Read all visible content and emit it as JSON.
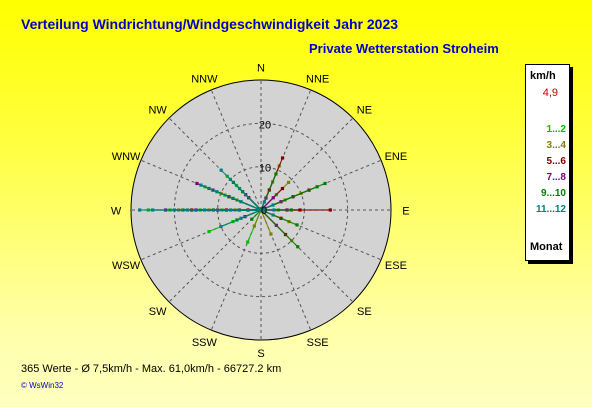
{
  "header": {
    "title": "Verteilung Windrichtung/Windgeschwindigkeit  Jahr 2023",
    "subtitle": "Private Wetterstation Stroheim"
  },
  "footer": {
    "stats": "365 Werte    -    Ø 7,5km/h   -  Max. 61,0km/h   -   66727.2 km",
    "credit": "© WsWin32"
  },
  "legend": {
    "unit": "km/h",
    "average": "4,9",
    "months": [
      {
        "label": "1...2",
        "color": "#00c000"
      },
      {
        "label": "3...4",
        "color": "#808000"
      },
      {
        "label": "5...6",
        "color": "#800000"
      },
      {
        "label": "7...8",
        "color": "#800080"
      },
      {
        "label": "9...10",
        "color": "#008000"
      },
      {
        "label": "11...12",
        "color": "#008080"
      }
    ],
    "footer": "Monat"
  },
  "chart_data": {
    "type": "scatter",
    "polar": true,
    "title": "Verteilung Windrichtung/Windgeschwindigkeit  Jahr 2023",
    "subtitle": "Private Wetterstation Stroheim",
    "direction_labels": [
      "N",
      "NNE",
      "NE",
      "ENE",
      "E",
      "ESE",
      "SE",
      "SSE",
      "S",
      "SSW",
      "SW",
      "WSW",
      "W",
      "WNW",
      "NW",
      "NNW"
    ],
    "radial_ticks": [
      10,
      20
    ],
    "radial_max": 30,
    "grid": true,
    "legend_position": "right",
    "series": [
      {
        "name": "1...2",
        "color": "#00c000",
        "points": [
          [
            270,
            26
          ],
          [
            270,
            21
          ],
          [
            270,
            14
          ],
          [
            270,
            9
          ],
          [
            292.5,
            14
          ],
          [
            292.5,
            9
          ],
          [
            315,
            11
          ],
          [
            315,
            8
          ],
          [
            247.5,
            7
          ],
          [
            22.5,
            7
          ],
          [
            45,
            5
          ],
          [
            90,
            4
          ],
          [
            202.5,
            8
          ],
          [
            247.5,
            13
          ]
        ]
      },
      {
        "name": "3...4",
        "color": "#808000",
        "points": [
          [
            270,
            19
          ],
          [
            270,
            12
          ],
          [
            270,
            6
          ],
          [
            292.5,
            10
          ],
          [
            315,
            6
          ],
          [
            22.5,
            11
          ],
          [
            45,
            9
          ],
          [
            67.5,
            6
          ],
          [
            67.5,
            10
          ],
          [
            112.5,
            7
          ],
          [
            135,
            10
          ],
          [
            157.5,
            6
          ],
          [
            202.5,
            4
          ],
          [
            292.5,
            6
          ]
        ]
      },
      {
        "name": "5...6",
        "color": "#800000",
        "points": [
          [
            270,
            16
          ],
          [
            270,
            8
          ],
          [
            292.5,
            8
          ],
          [
            315,
            4
          ],
          [
            22.5,
            5
          ],
          [
            22.5,
            13
          ],
          [
            45,
            7
          ],
          [
            67.5,
            8
          ],
          [
            67.5,
            12
          ],
          [
            90,
            9
          ],
          [
            90,
            16
          ],
          [
            112.5,
            5
          ],
          [
            135,
            8
          ],
          [
            270,
            3
          ]
        ]
      },
      {
        "name": "7...8",
        "color": "#800080",
        "points": [
          [
            270,
            22
          ],
          [
            270,
            15
          ],
          [
            270,
            10
          ],
          [
            292.5,
            16
          ],
          [
            292.5,
            12
          ],
          [
            315,
            5
          ],
          [
            22.5,
            3
          ],
          [
            45,
            4
          ],
          [
            67.5,
            5
          ],
          [
            90,
            6
          ],
          [
            135,
            5
          ],
          [
            270,
            5
          ],
          [
            247.5,
            4
          ]
        ]
      },
      {
        "name": "9...10",
        "color": "#008000",
        "points": [
          [
            270,
            18
          ],
          [
            270,
            11
          ],
          [
            270,
            5
          ],
          [
            292.5,
            13
          ],
          [
            292.5,
            7
          ],
          [
            315,
            9
          ],
          [
            315,
            6
          ],
          [
            67.5,
            14
          ],
          [
            67.5,
            16
          ],
          [
            90,
            7
          ],
          [
            112.5,
            9
          ],
          [
            135,
            12
          ],
          [
            22.5,
            9
          ],
          [
            247.5,
            6
          ],
          [
            225,
            3
          ]
        ]
      },
      {
        "name": "11...12",
        "color": "#008080",
        "points": [
          [
            270,
            28
          ],
          [
            270,
            25
          ],
          [
            270,
            20
          ],
          [
            270,
            17
          ],
          [
            270,
            13
          ],
          [
            270,
            7
          ],
          [
            292.5,
            11
          ],
          [
            292.5,
            15
          ],
          [
            292.5,
            5
          ],
          [
            315,
            13
          ],
          [
            315,
            7
          ],
          [
            315,
            10
          ],
          [
            247.5,
            10
          ],
          [
            247.5,
            5
          ],
          [
            22.5,
            2
          ],
          [
            67.5,
            3
          ],
          [
            112.5,
            3
          ],
          [
            90,
            3
          ]
        ]
      }
    ]
  }
}
